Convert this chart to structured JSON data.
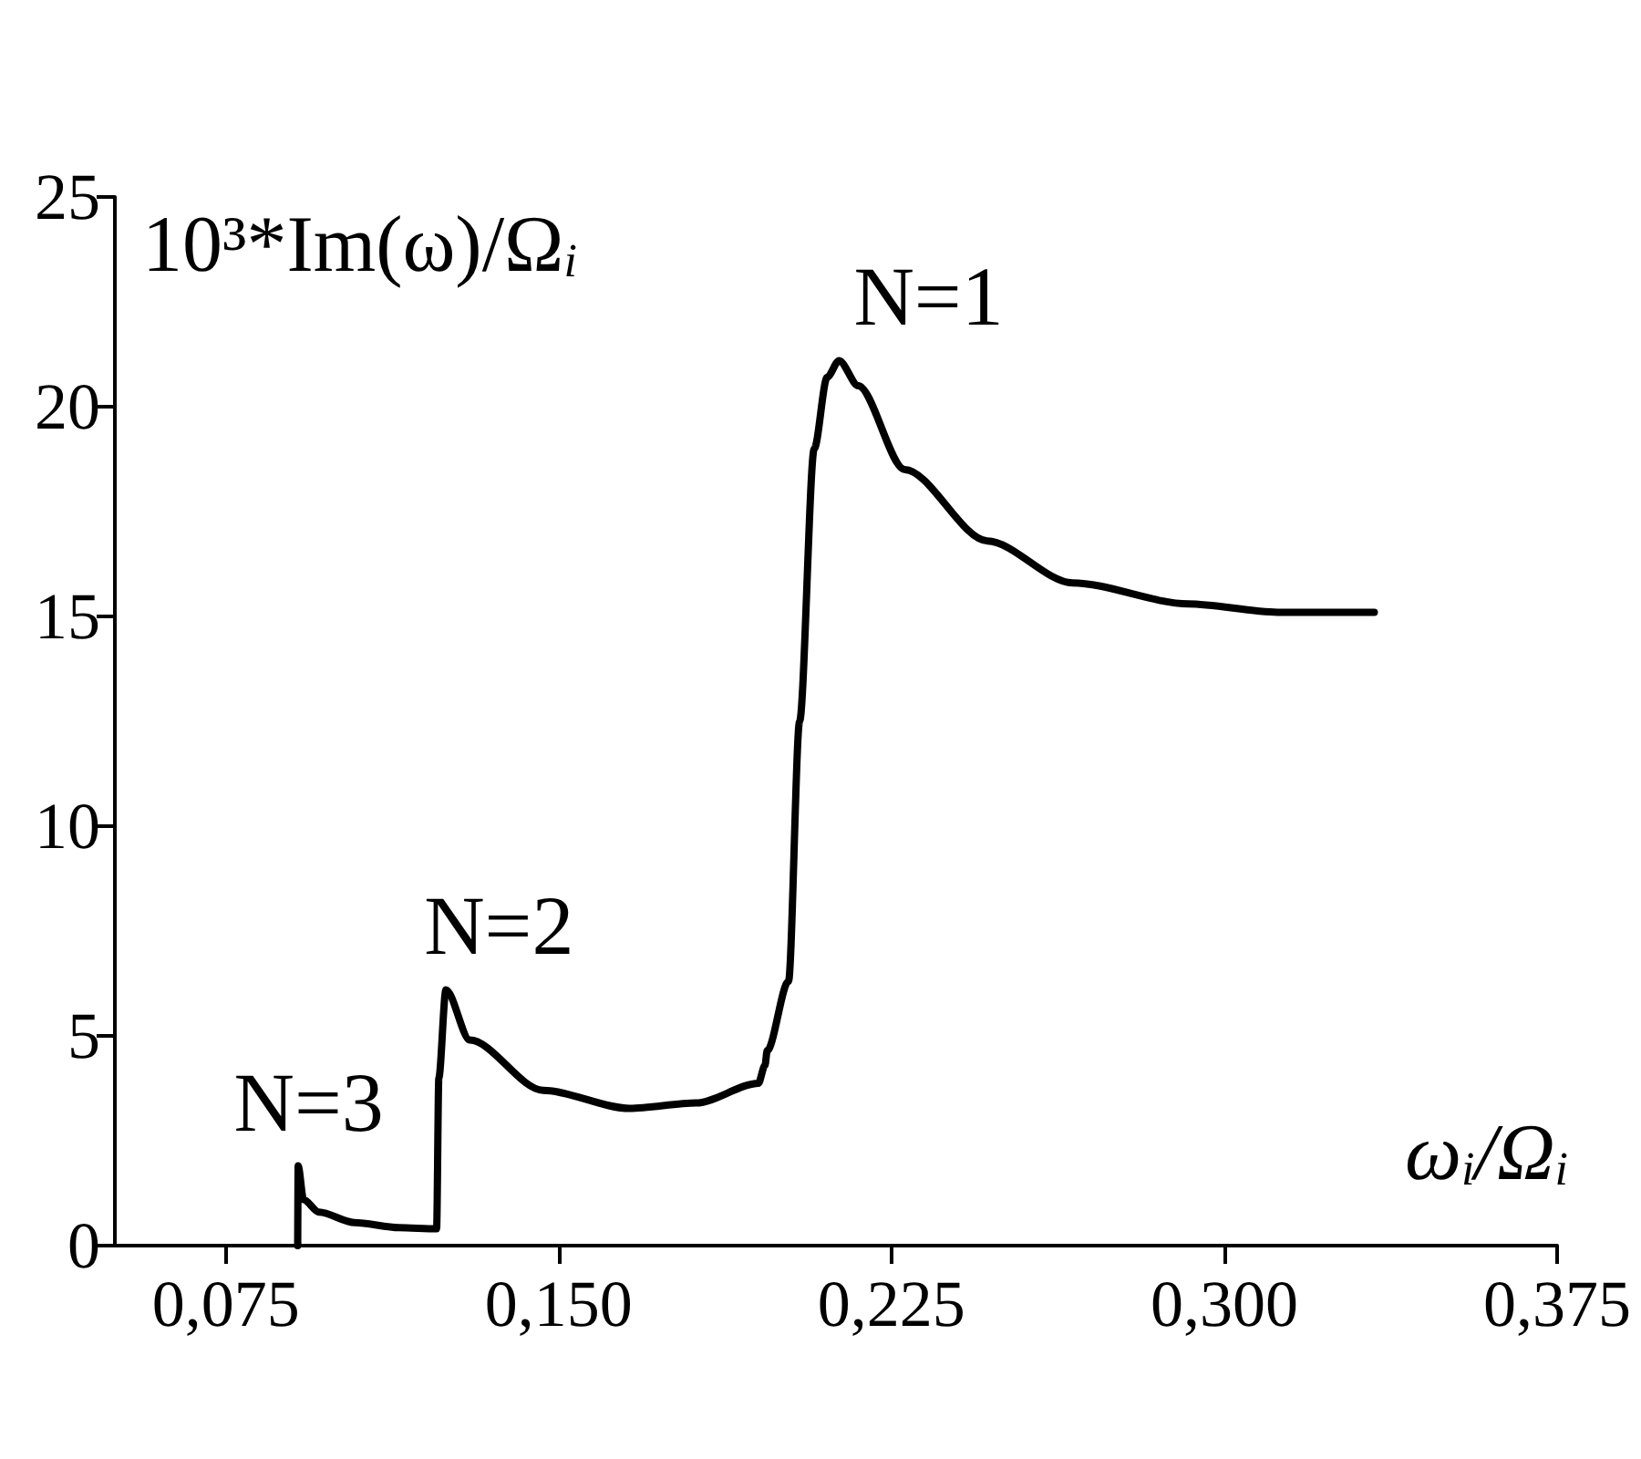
{
  "chart_data": {
    "type": "line",
    "xlabel": "ω$_{i}$/Ω$_{i}$",
    "ylabel": "10³*Im(ω)/Ω$_{i}$",
    "series": [
      {
        "color": "#000000",
        "x": [
          0.0912,
          0.0913,
          0.0925,
          0.096,
          0.104,
          0.114,
          0.1225,
          0.123,
          0.1246,
          0.13,
          0.1465,
          0.166,
          0.181,
          0.195,
          0.1965,
          0.197,
          0.2018,
          0.2043,
          0.2076,
          0.2105,
          0.2132,
          0.2175,
          0.228,
          0.2466,
          0.2658,
          0.2919,
          0.312,
          0.3338
        ],
        "values": [
          0,
          1.9,
          1.1,
          0.8,
          0.55,
          0.43,
          0.4,
          4.0,
          6.1,
          4.9,
          3.7,
          3.27,
          3.4,
          3.87,
          4.3,
          4.65,
          6.3,
          12.5,
          19,
          20.7,
          21.1,
          20.5,
          18.5,
          16.8,
          15.8,
          15.3,
          15.1,
          15.1
        ]
      }
    ],
    "xlim": [
      0.05,
      0.375
    ],
    "xticks": [
      {
        "value": 0.075,
        "label": "0,075"
      },
      {
        "value": 0.15,
        "label": "0,150"
      },
      {
        "value": 0.225,
        "label": "0,225"
      },
      {
        "value": 0.3,
        "label": "0,300"
      },
      {
        "value": 0.375,
        "label": "0,375"
      }
    ],
    "ylim": [
      0,
      25
    ],
    "yticks": [
      0,
      5,
      10,
      15,
      20,
      25
    ],
    "annotations": [
      {
        "text": "N=3",
        "x": 0.0912,
        "y": 1.9
      },
      {
        "text": "N=2",
        "x": 0.1246,
        "y": 6.1
      },
      {
        "text": "N=1",
        "x": 0.2132,
        "y": 21.1
      }
    ],
    "grid": false,
    "marker": "none",
    "line_style": "solid"
  }
}
